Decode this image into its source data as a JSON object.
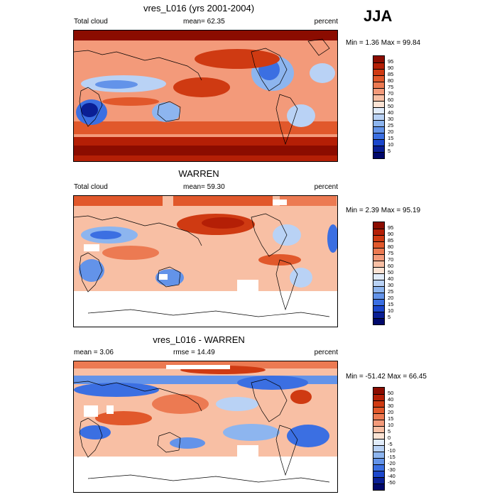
{
  "season": "JJA",
  "panels": [
    {
      "title": "vres_L016 (yrs 2001-2004)",
      "left_label": "Total cloud",
      "center_label": "mean=  62.35",
      "right_label": "percent",
      "minmax": "Min =   1.36 Max =  99.84",
      "levels": [
        "95",
        "90",
        "85",
        "80",
        "75",
        "70",
        "60",
        "50",
        "40",
        "30",
        "25",
        "20",
        "15",
        "10",
        "5"
      ],
      "colors": [
        "#8b0c00",
        "#b41f06",
        "#cf3a12",
        "#e1582b",
        "#ec7a52",
        "#f39a7a",
        "#f8bfa4",
        "#fbe3d4",
        "#e1ecfa",
        "#b9d2f5",
        "#8db5ef",
        "#6393e9",
        "#3b6fe2",
        "#1c47cc",
        "#0a1f95",
        "#00086a"
      ]
    },
    {
      "title": "WARREN",
      "left_label": "Total cloud",
      "center_label": "mean=  59.30",
      "right_label": "percent",
      "minmax": "Min =   2.39 Max =  95.19",
      "levels": [
        "95",
        "90",
        "85",
        "80",
        "75",
        "70",
        "60",
        "50",
        "40",
        "30",
        "25",
        "20",
        "15",
        "10",
        "5"
      ],
      "colors": [
        "#8b0c00",
        "#b41f06",
        "#cf3a12",
        "#e1582b",
        "#ec7a52",
        "#f39a7a",
        "#f8bfa4",
        "#fbe3d4",
        "#e1ecfa",
        "#b9d2f5",
        "#8db5ef",
        "#6393e9",
        "#3b6fe2",
        "#1c47cc",
        "#0a1f95",
        "#00086a"
      ]
    },
    {
      "title": "vres_L016 - WARREN",
      "left_label": "mean =   3.06",
      "center_label": "rmse =  14.49",
      "right_label": "percent",
      "minmax": "Min = -51.42 Max =  66.45",
      "levels": [
        "50",
        "40",
        "30",
        "20",
        "15",
        "10",
        "5",
        "0",
        "-5",
        "-10",
        "-15",
        "-20",
        "-30",
        "-40",
        "-50"
      ],
      "colors": [
        "#8b0c00",
        "#b41f06",
        "#cf3a12",
        "#e1582b",
        "#ec7a52",
        "#f39a7a",
        "#f8bfa4",
        "#fbe3d4",
        "#e1ecfa",
        "#b9d2f5",
        "#8db5ef",
        "#6393e9",
        "#3b6fe2",
        "#1c47cc",
        "#0a1f95",
        "#00086a"
      ]
    }
  ]
}
